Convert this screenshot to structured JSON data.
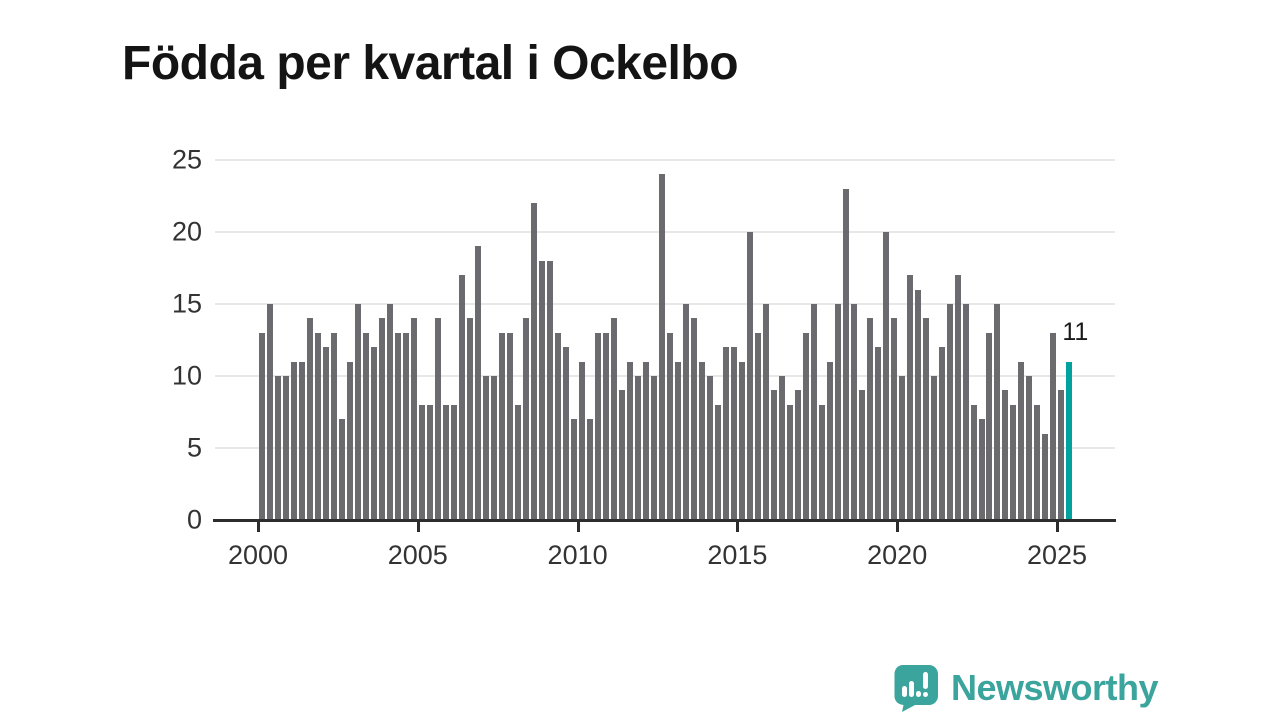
{
  "title": "Födda per kvartal i Ockelbo",
  "annotation": {
    "text": "11"
  },
  "logo": {
    "text": "Newsworthy",
    "icon": "newsworthy-speech-bubble-chart-icon"
  },
  "colors": {
    "bar": "#6a6a6f",
    "highlight": "#00a29d",
    "grid": "#e7e7e7",
    "axis": "#2d2d2d",
    "tick_label": "#333333",
    "title": "#141414",
    "annotation": "#1a1a1a",
    "logo": "#3ba49d"
  },
  "chart_data": {
    "type": "bar",
    "title": "Födda per kvartal i Ockelbo",
    "xlabel": "",
    "ylabel": "",
    "ylim": [
      0,
      25
    ],
    "y_ticks": [
      0,
      5,
      10,
      15,
      20,
      25
    ],
    "x_tick_labels": [
      "2000",
      "2005",
      "2010",
      "2015",
      "2020",
      "2025"
    ],
    "grid": "horizontal",
    "legend": "none",
    "highlight_last_bar": true,
    "last_bar_label": "11",
    "categories": [
      "2000Q1",
      "2000Q2",
      "2000Q3",
      "2000Q4",
      "2001Q1",
      "2001Q2",
      "2001Q3",
      "2001Q4",
      "2002Q1",
      "2002Q2",
      "2002Q3",
      "2002Q4",
      "2003Q1",
      "2003Q2",
      "2003Q3",
      "2003Q4",
      "2004Q1",
      "2004Q2",
      "2004Q3",
      "2004Q4",
      "2005Q1",
      "2005Q2",
      "2005Q3",
      "2005Q4",
      "2006Q1",
      "2006Q2",
      "2006Q3",
      "2006Q4",
      "2007Q1",
      "2007Q2",
      "2007Q3",
      "2007Q4",
      "2008Q1",
      "2008Q2",
      "2008Q3",
      "2008Q4",
      "2009Q1",
      "2009Q2",
      "2009Q3",
      "2009Q4",
      "2010Q1",
      "2010Q2",
      "2010Q3",
      "2010Q4",
      "2011Q1",
      "2011Q2",
      "2011Q3",
      "2011Q4",
      "2012Q1",
      "2012Q2",
      "2012Q3",
      "2012Q4",
      "2013Q1",
      "2013Q2",
      "2013Q3",
      "2013Q4",
      "2014Q1",
      "2014Q2",
      "2014Q3",
      "2014Q4",
      "2015Q1",
      "2015Q2",
      "2015Q3",
      "2015Q4",
      "2016Q1",
      "2016Q2",
      "2016Q3",
      "2016Q4",
      "2017Q1",
      "2017Q2",
      "2017Q3",
      "2017Q4",
      "2018Q1",
      "2018Q2",
      "2018Q3",
      "2018Q4",
      "2019Q1",
      "2019Q2",
      "2019Q3",
      "2019Q4",
      "2020Q1",
      "2020Q2",
      "2020Q3",
      "2020Q4",
      "2021Q1",
      "2021Q2",
      "2021Q3",
      "2021Q4",
      "2022Q1",
      "2022Q2",
      "2022Q3",
      "2022Q4",
      "2023Q1",
      "2023Q2",
      "2023Q3",
      "2023Q4",
      "2024Q1",
      "2024Q2",
      "2024Q3",
      "2024Q4",
      "2025Q1",
      "2025Q2"
    ],
    "values": [
      13,
      15,
      10,
      10,
      11,
      11,
      14,
      13,
      12,
      13,
      7,
      11,
      15,
      13,
      12,
      14,
      15,
      13,
      13,
      14,
      8,
      8,
      14,
      8,
      8,
      17,
      14,
      19,
      10,
      10,
      13,
      13,
      8,
      14,
      22,
      18,
      18,
      13,
      12,
      7,
      11,
      7,
      13,
      13,
      14,
      9,
      11,
      10,
      11,
      10,
      24,
      13,
      11,
      15,
      14,
      11,
      10,
      8,
      12,
      12,
      11,
      20,
      13,
      15,
      9,
      10,
      8,
      9,
      13,
      15,
      8,
      11,
      15,
      23,
      15,
      9,
      14,
      12,
      20,
      14,
      10,
      17,
      16,
      14,
      10,
      12,
      15,
      17,
      15,
      8,
      7,
      13,
      15,
      9,
      8,
      11,
      10,
      8,
      6,
      13,
      9,
      11
    ]
  }
}
